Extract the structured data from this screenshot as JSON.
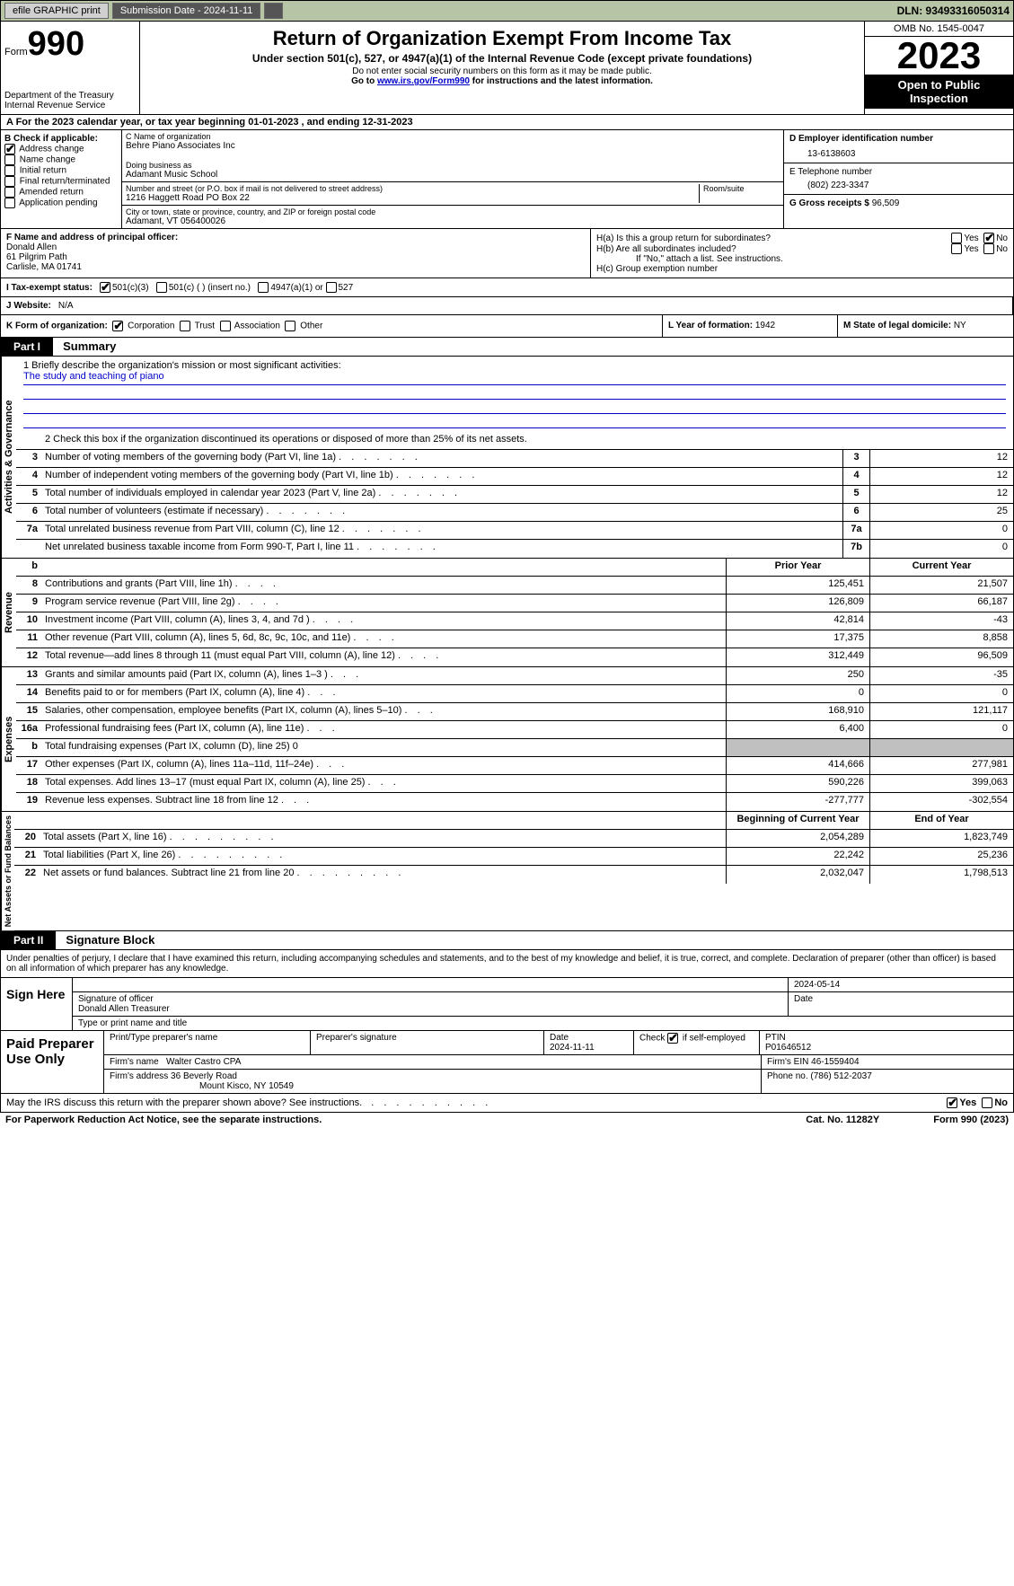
{
  "topbar": {
    "efile": "efile GRAPHIC print - DO NOT PROCESS",
    "btn_efile": "efile GRAPHIC print",
    "btn_sub": "Submission Date - 2024-11-11",
    "dln": "DLN: 93493316050314"
  },
  "header": {
    "form_label": "Form",
    "form_no": "990",
    "dept": "Department of the Treasury\nInternal Revenue Service",
    "title": "Return of Organization Exempt From Income Tax",
    "sub": "Under section 501(c), 527, or 4947(a)(1) of the Internal Revenue Code (except private foundations)",
    "ssn": "Do not enter social security numbers on this form as it may be made public.",
    "goto": "Go to www.irs.gov/Form990 for instructions and the latest information.",
    "link": "www.irs.gov/Form990",
    "omb": "OMB No. 1545-0047",
    "year": "2023",
    "otp": "Open to Public Inspection"
  },
  "row_a": "A For the 2023 calendar year, or tax year beginning 01-01-2023   , and ending 12-31-2023",
  "box_b": {
    "label": "B Check if applicable:",
    "items": [
      "Address change",
      "Name change",
      "Initial return",
      "Final return/terminated",
      "Amended return",
      "Application pending"
    ],
    "checked": [
      true,
      false,
      false,
      false,
      false,
      false
    ]
  },
  "box_c": {
    "name_lbl": "C Name of organization",
    "name": "Behre Piano Associates Inc",
    "dba_lbl": "Doing business as",
    "dba": "Adamant Music School",
    "street_lbl": "Number and street (or P.O. box if mail is not delivered to street address)",
    "street": "1216 Haggett Road PO Box 22",
    "room_lbl": "Room/suite",
    "city_lbl": "City or town, state or province, country, and ZIP or foreign postal code",
    "city": "Adamant, VT  056400026"
  },
  "box_d": {
    "ein_lbl": "D Employer identification number",
    "ein": "13-6138603",
    "tel_lbl": "E Telephone number",
    "tel": "(802) 223-3347",
    "gross_lbl": "G Gross receipts $",
    "gross": "96,509"
  },
  "box_f": {
    "lbl": "F  Name and address of principal officer:",
    "name": "Donald Allen",
    "addr1": "61 Pilgrim Path",
    "addr2": "Carlisle, MA  01741"
  },
  "box_h": {
    "ha": "H(a)  Is this a group return for subordinates?",
    "hb": "H(b)  Are all subordinates included?",
    "hb2": "If \"No,\" attach a list. See instructions.",
    "hc": "H(c)  Group exemption number",
    "yes": "Yes",
    "no": "No"
  },
  "row_i": {
    "lbl": "I   Tax-exempt status:",
    "o1": "501(c)(3)",
    "o2": "501(c) (  ) (insert no.)",
    "o3": "4947(a)(1) or",
    "o4": "527"
  },
  "row_j": {
    "lbl": "J   Website:",
    "val": "N/A"
  },
  "row_k": {
    "lbl": "K Form of organization:",
    "o1": "Corporation",
    "o2": "Trust",
    "o3": "Association",
    "o4": "Other",
    "l_lbl": "L Year of formation:",
    "l_val": "1942",
    "m_lbl": "M State of legal domicile:",
    "m_val": "NY"
  },
  "part1": {
    "hdr": "Part I",
    "title": "Summary"
  },
  "summary": {
    "mission_lbl": "1  Briefly describe the organization's mission or most significant activities:",
    "mission": "The study and teaching of piano",
    "line2": "2   Check this box      if the organization discontinued its operations or disposed of more than 25% of its net assets.",
    "vert1": "Activities & Governance",
    "vert2": "Revenue",
    "vert3": "Expenses",
    "vert4": "Net Assets or Fund Balances",
    "rows_gov": [
      {
        "n": "3",
        "d": "Number of voting members of the governing body (Part VI, line 1a)",
        "b": "3",
        "v": "12"
      },
      {
        "n": "4",
        "d": "Number of independent voting members of the governing body (Part VI, line 1b)",
        "b": "4",
        "v": "12"
      },
      {
        "n": "5",
        "d": "Total number of individuals employed in calendar year 2023 (Part V, line 2a)",
        "b": "5",
        "v": "12"
      },
      {
        "n": "6",
        "d": "Total number of volunteers (estimate if necessary)",
        "b": "6",
        "v": "25"
      },
      {
        "n": "7a",
        "d": "Total unrelated business revenue from Part VIII, column (C), line 12",
        "b": "7a",
        "v": "0"
      },
      {
        "n": "",
        "d": "Net unrelated business taxable income from Form 990-T, Part I, line 11",
        "b": "7b",
        "v": "0"
      }
    ],
    "hdr_prior": "Prior Year",
    "hdr_curr": "Current Year",
    "rows_rev": [
      {
        "n": "8",
        "d": "Contributions and grants (Part VIII, line 1h)",
        "p": "125,451",
        "c": "21,507"
      },
      {
        "n": "9",
        "d": "Program service revenue (Part VIII, line 2g)",
        "p": "126,809",
        "c": "66,187"
      },
      {
        "n": "10",
        "d": "Investment income (Part VIII, column (A), lines 3, 4, and 7d )",
        "p": "42,814",
        "c": "-43"
      },
      {
        "n": "11",
        "d": "Other revenue (Part VIII, column (A), lines 5, 6d, 8c, 9c, 10c, and 11e)",
        "p": "17,375",
        "c": "8,858"
      },
      {
        "n": "12",
        "d": "Total revenue—add lines 8 through 11 (must equal Part VIII, column (A), line 12)",
        "p": "312,449",
        "c": "96,509"
      }
    ],
    "rows_exp": [
      {
        "n": "13",
        "d": "Grants and similar amounts paid (Part IX, column (A), lines 1–3 )",
        "p": "250",
        "c": "-35"
      },
      {
        "n": "14",
        "d": "Benefits paid to or for members (Part IX, column (A), line 4)",
        "p": "0",
        "c": "0"
      },
      {
        "n": "15",
        "d": "Salaries, other compensation, employee benefits (Part IX, column (A), lines 5–10)",
        "p": "168,910",
        "c": "121,117"
      },
      {
        "n": "16a",
        "d": "Professional fundraising fees (Part IX, column (A), line 11e)",
        "p": "6,400",
        "c": "0"
      },
      {
        "n": "b",
        "d": "Total fundraising expenses (Part IX, column (D), line 25) 0",
        "p": "",
        "c": "",
        "grey": true
      },
      {
        "n": "17",
        "d": "Other expenses (Part IX, column (A), lines 11a–11d, 11f–24e)",
        "p": "414,666",
        "c": "277,981"
      },
      {
        "n": "18",
        "d": "Total expenses. Add lines 13–17 (must equal Part IX, column (A), line 25)",
        "p": "590,226",
        "c": "399,063"
      },
      {
        "n": "19",
        "d": "Revenue less expenses. Subtract line 18 from line 12",
        "p": "-277,777",
        "c": "-302,554"
      }
    ],
    "hdr_beg": "Beginning of Current Year",
    "hdr_end": "End of Year",
    "rows_net": [
      {
        "n": "20",
        "d": "Total assets (Part X, line 16)",
        "p": "2,054,289",
        "c": "1,823,749"
      },
      {
        "n": "21",
        "d": "Total liabilities (Part X, line 26)",
        "p": "22,242",
        "c": "25,236"
      },
      {
        "n": "22",
        "d": "Net assets or fund balances. Subtract line 21 from line 20",
        "p": "2,032,047",
        "c": "1,798,513"
      }
    ]
  },
  "part2": {
    "hdr": "Part II",
    "title": "Signature Block"
  },
  "decl": "Under penalties of perjury, I declare that I have examined this return, including accompanying schedules and statements, and to the best of my knowledge and belief, it is true, correct, and complete. Declaration of preparer (other than officer) is based on all information of which preparer has any knowledge.",
  "sign": {
    "here": "Sign Here",
    "date": "2024-05-14",
    "sig_lbl": "Signature of officer",
    "name": "Donald Allen Treasurer",
    "type_lbl": "Type or print name and title",
    "date_lbl": "Date"
  },
  "prep": {
    "lbl": "Paid Preparer Use Only",
    "print_lbl": "Print/Type preparer's name",
    "sig_lbl": "Preparer's signature",
    "date_lbl": "Date",
    "date": "2024-11-11",
    "check_lbl": "Check        if self-employed",
    "ptin_lbl": "PTIN",
    "ptin": "P01646512",
    "firm_name_lbl": "Firm's name",
    "firm_name": "Walter Castro CPA",
    "firm_ein_lbl": "Firm's EIN",
    "firm_ein": "46-1559404",
    "firm_addr_lbl": "Firm's address",
    "firm_addr1": "36 Beverly Road",
    "firm_addr2": "Mount Kisco, NY  10549",
    "phone_lbl": "Phone no.",
    "phone": "(786) 512-2037"
  },
  "may": {
    "text": "May the IRS discuss this return with the preparer shown above? See instructions.",
    "yes": "Yes",
    "no": "No"
  },
  "footer": {
    "left": "For Paperwork Reduction Act Notice, see the separate instructions.",
    "mid": "Cat. No. 11282Y",
    "right": "Form 990 (2023)"
  },
  "colors": {
    "topbar_bg": "#b8c4a6",
    "link": "#0000cc"
  }
}
